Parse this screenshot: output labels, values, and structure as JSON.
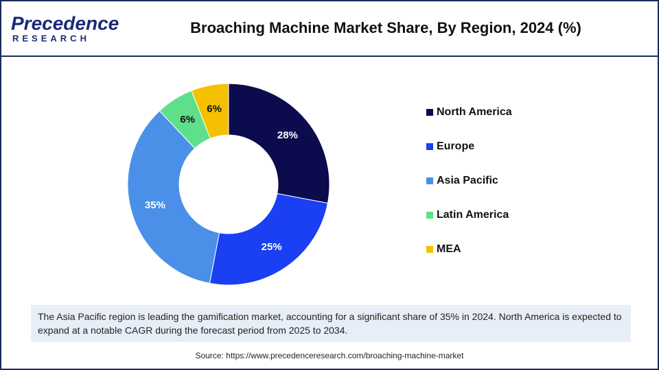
{
  "logo": {
    "name": "Precedence",
    "tagline": "RESEARCH"
  },
  "chart_data": {
    "type": "donut",
    "title": "Broaching Machine Market Share, By Region, 2024 (%)",
    "categories": [
      "North America",
      "Europe",
      "Asia Pacific",
      "Latin America",
      "MEA"
    ],
    "values": [
      28,
      25,
      35,
      6,
      6
    ],
    "value_labels": [
      "28%",
      "25%",
      "35%",
      "6%",
      "6%"
    ],
    "colors": [
      "#0b0b4d",
      "#1b3ff2",
      "#4a90e8",
      "#5ee08a",
      "#f5c000"
    ],
    "legend": "right"
  },
  "note": "The Asia Pacific region is leading the gamification market, accounting for a significant share of 35% in 2024. North America is expected to expand at a notable CAGR during the forecast period from 2025 to 2034.",
  "source": "Source: https://www.precedenceresearch.com/broaching-machine-market"
}
